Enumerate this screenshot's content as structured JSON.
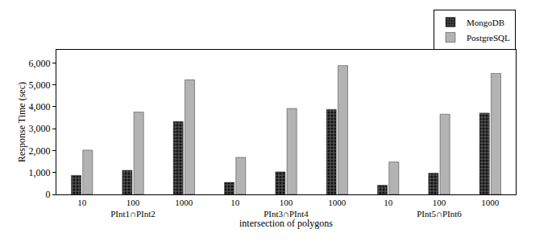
{
  "chart_data": {
    "type": "bar",
    "x_label": "intersection of polygons",
    "y_label": "Response Time (sec)",
    "categories": [
      [
        "PInt1∩PInt2",
        "10"
      ],
      [
        "PInt1∩PInt2",
        "100"
      ],
      [
        "PInt1∩PInt2",
        "1000"
      ],
      [
        "PInt3∩PInt4",
        "10"
      ],
      [
        "PInt3∩PInt4",
        "100"
      ],
      [
        "PInt3∩PInt4",
        "1000"
      ],
      [
        "PInt5∩PInt6",
        "10"
      ],
      [
        "PInt5∩PInt6",
        "100"
      ],
      [
        "PInt5∩PInt6",
        "1000"
      ]
    ],
    "series": [
      {
        "name": "MongoDB",
        "color": "#4d4d4d",
        "values": [
          870,
          1100,
          3330,
          550,
          1030,
          3880,
          420,
          970,
          3710
        ]
      },
      {
        "name": "PostgreSQL",
        "color": "#b3b3b3",
        "values": [
          2020,
          3760,
          5230,
          1690,
          3920,
          5880,
          1480,
          3660,
          5520
        ]
      }
    ],
    "ylim": [
      0,
      6600
    ],
    "yticks": [
      0,
      {
        "value": 1000,
        "label": "1,000"
      },
      {
        "value": 2000,
        "label": "2,000"
      },
      {
        "value": 3000,
        "label": "3,000"
      },
      {
        "value": 4000,
        "label": "4,000"
      },
      {
        "value": 5000,
        "label": "5,000"
      },
      {
        "value": 6000,
        "label": "6,000"
      }
    ],
    "grid": false,
    "legend": "top right"
  }
}
